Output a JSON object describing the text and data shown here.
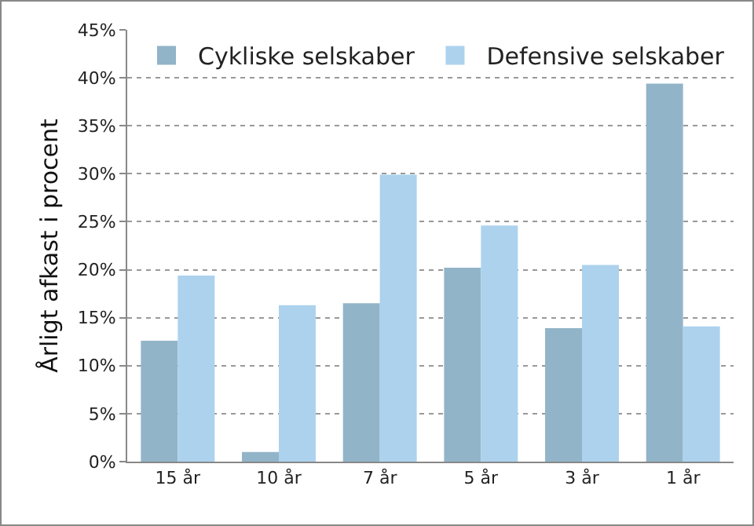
{
  "chart_data": {
    "type": "bar",
    "ylabel": "Årligt afkast i procent",
    "categories": [
      "15 år",
      "10 år",
      "7 år",
      "5 år",
      "3 år",
      "1 år"
    ],
    "series": [
      {
        "name": "Cykliske selskaber",
        "color": "#92b4c8",
        "values": [
          12.6,
          1.0,
          16.5,
          20.2,
          13.9,
          39.4
        ]
      },
      {
        "name": "Defensive selskaber",
        "color": "#acd2ee",
        "values": [
          19.4,
          16.3,
          29.9,
          24.6,
          20.5,
          14.1
        ]
      }
    ],
    "ylim": [
      0,
      45
    ],
    "yticks": [
      {
        "value": 0,
        "label": "0%"
      },
      {
        "value": 5,
        "label": "5%"
      },
      {
        "value": 10,
        "label": "10%"
      },
      {
        "value": 15,
        "label": "15%"
      },
      {
        "value": 20,
        "label": "20%"
      },
      {
        "value": 25,
        "label": "25%"
      },
      {
        "value": 30,
        "label": "30%"
      },
      {
        "value": 35,
        "label": "35%"
      },
      {
        "value": 40,
        "label": "40%"
      },
      {
        "value": 45,
        "label": "45%"
      }
    ],
    "grid": "y",
    "legend": "top right"
  }
}
